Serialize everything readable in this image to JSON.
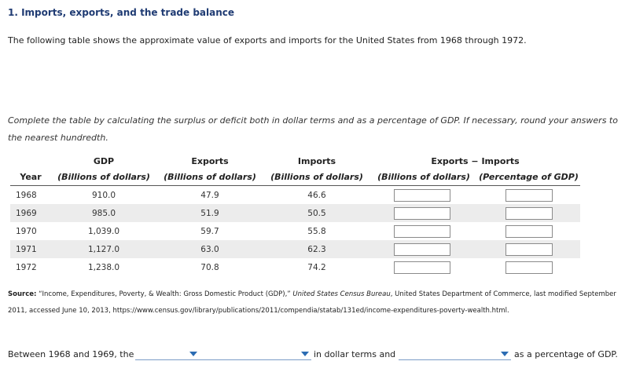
{
  "title": "1. Imports, exports, and the trade balance",
  "intro": "The following table shows the approximate value of exports and imports for the United States from 1968 through 1972.",
  "instructions": "Complete the table by calculating the surplus or deficit both in dollar terms and as a percentage of GDP. If necessary, round your answers to the nearest hundredth.",
  "table": {
    "headers": {
      "year": "Year",
      "gdp": "GDP",
      "gdp_unit": "(Billions of dollars)",
      "exports": "Exports",
      "exports_unit": "(Billions of dollars)",
      "imports": "Imports",
      "imports_unit": "(Billions of dollars)",
      "balance": "Exports − Imports",
      "balance_unit": "(Billions of dollars)",
      "balance_pct_unit": "(Percentage of GDP)"
    },
    "rows": [
      {
        "year": "1968",
        "gdp": "910.0",
        "exports": "47.9",
        "imports": "46.6",
        "balance": "",
        "balance_pct": ""
      },
      {
        "year": "1969",
        "gdp": "985.0",
        "exports": "51.9",
        "imports": "50.5",
        "balance": "",
        "balance_pct": ""
      },
      {
        "year": "1970",
        "gdp": "1,039.0",
        "exports": "59.7",
        "imports": "55.8",
        "balance": "",
        "balance_pct": ""
      },
      {
        "year": "1971",
        "gdp": "1,127.0",
        "exports": "63.0",
        "imports": "62.3",
        "balance": "",
        "balance_pct": ""
      },
      {
        "year": "1972",
        "gdp": "1,238.0",
        "exports": "70.8",
        "imports": "74.2",
        "balance": "",
        "balance_pct": ""
      }
    ]
  },
  "source": {
    "label": "Source:",
    "text_before": " “Income, Expenditures, Poverty, & Wealth: Gross Domestic Product (GDP),” ",
    "publication": "United States Census Bureau",
    "text_after": ", United States Department of Commerce, last modified September 2011, accessed June 10, 2013, https://www.census.gov/library/publications/2011/compendia/statab/131ed/income-expenditures-poverty-wealth.html."
  },
  "sentence": {
    "part1": "Between 1968 and 1969, the",
    "part2": "in dollar terms and",
    "part3": "as a percentage of GDP.",
    "dropdown1_value": "",
    "dropdown2_value": "",
    "dropdown3_value": ""
  },
  "colors": {
    "title": "#1f3b73",
    "row_shade": "#ececec",
    "dropdown_caret": "#2b6cb3"
  }
}
